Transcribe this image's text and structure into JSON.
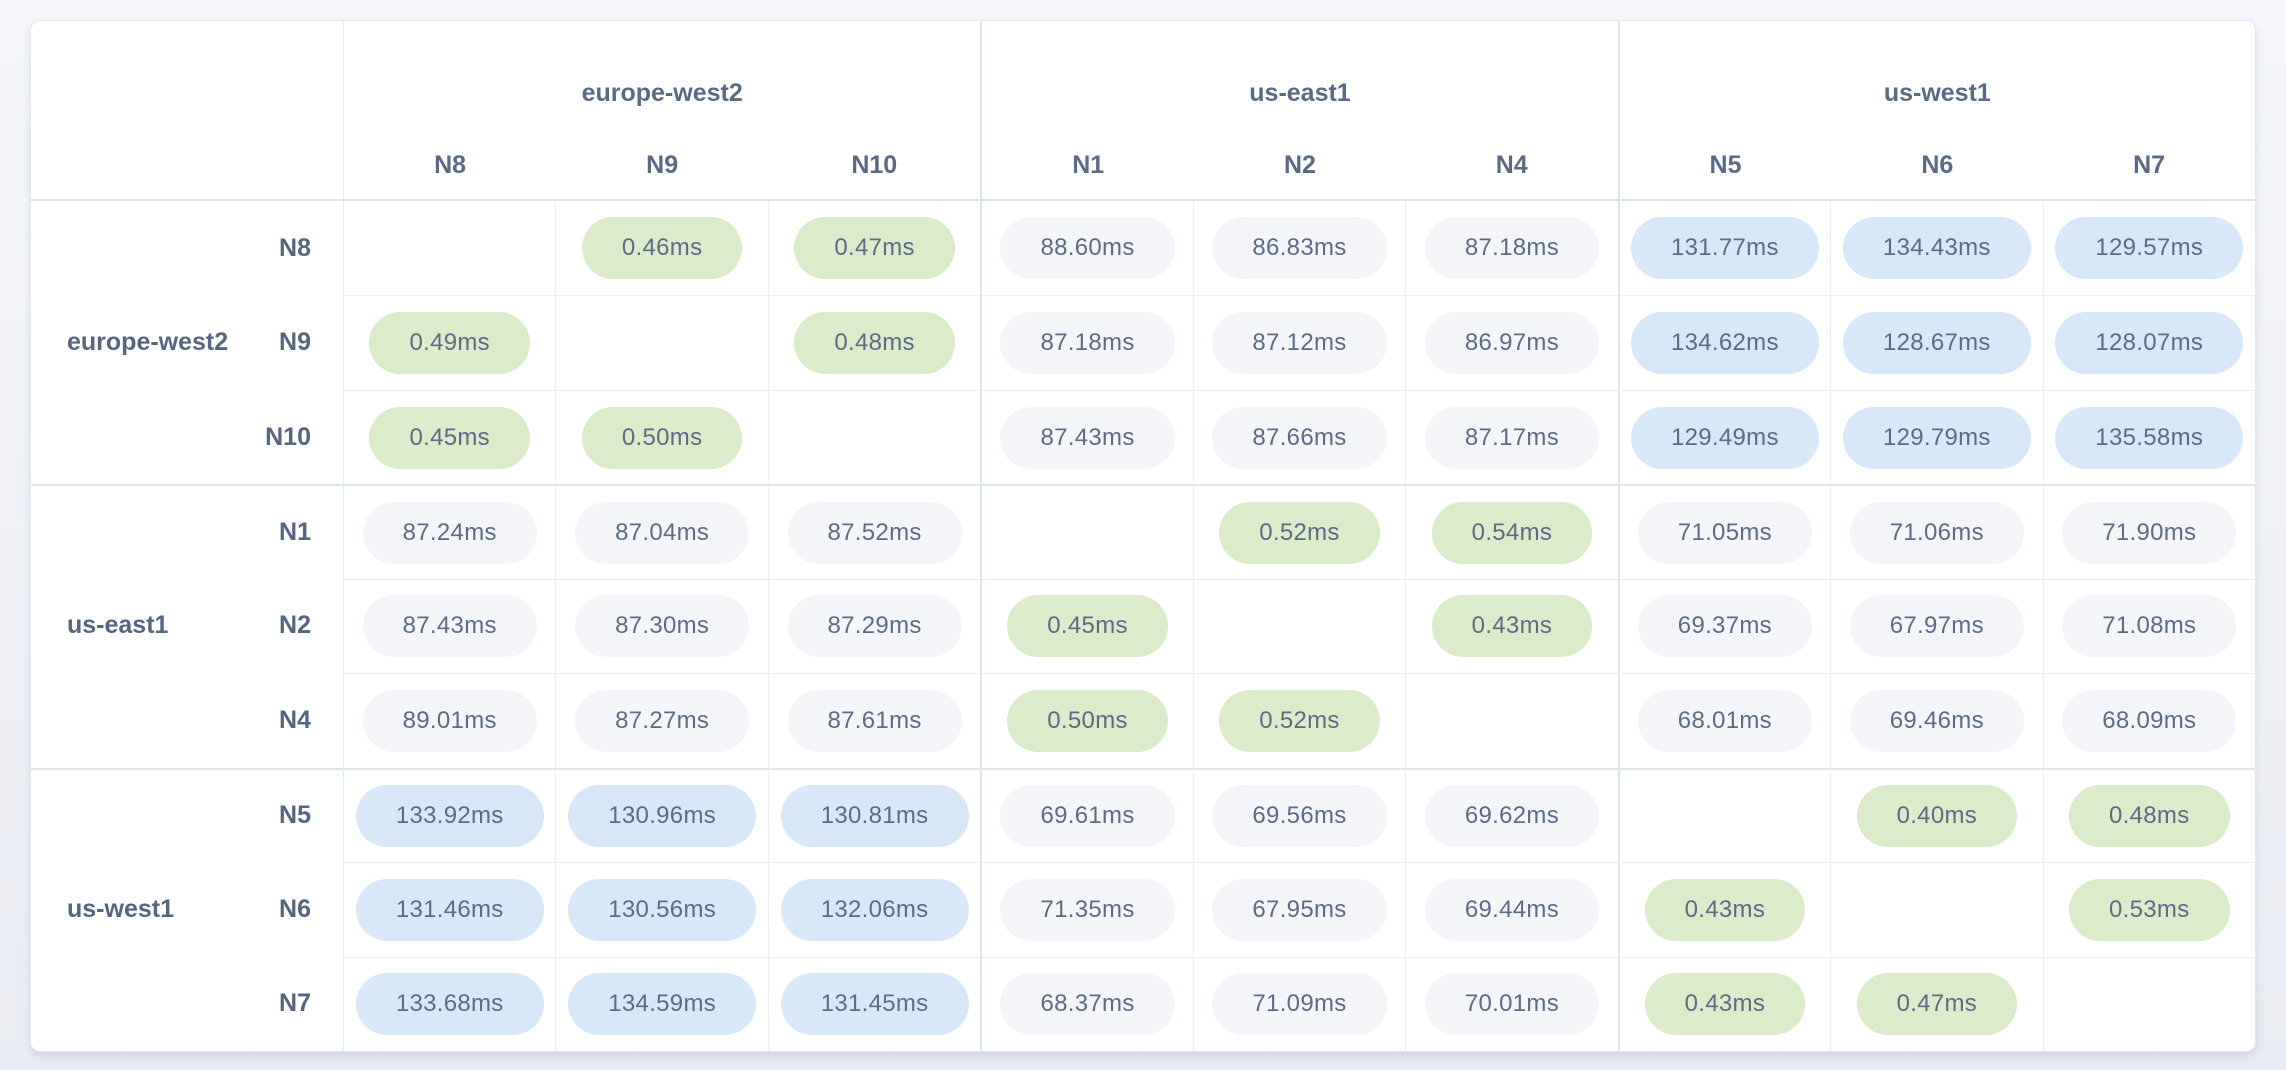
{
  "chart_data": {
    "type": "heatmap",
    "title": "",
    "unit": "ms",
    "columns": [
      "N8",
      "N9",
      "N10",
      "N1",
      "N2",
      "N4",
      "N5",
      "N6",
      "N7"
    ],
    "rows": [
      "N8",
      "N9",
      "N10",
      "N1",
      "N2",
      "N4",
      "N5",
      "N6",
      "N7"
    ],
    "column_groups": [
      {
        "name": "europe-west2",
        "nodes": [
          "N8",
          "N9",
          "N10"
        ]
      },
      {
        "name": "us-east1",
        "nodes": [
          "N1",
          "N2",
          "N4"
        ]
      },
      {
        "name": "us-west1",
        "nodes": [
          "N5",
          "N6",
          "N7"
        ]
      }
    ],
    "row_groups": [
      {
        "name": "europe-west2",
        "nodes": [
          "N8",
          "N9",
          "N10"
        ]
      },
      {
        "name": "us-east1",
        "nodes": [
          "N1",
          "N2",
          "N4"
        ]
      },
      {
        "name": "us-west1",
        "nodes": [
          "N5",
          "N6",
          "N7"
        ]
      }
    ],
    "values_ms": [
      [
        null,
        0.46,
        0.47,
        88.6,
        86.83,
        87.18,
        131.77,
        134.43,
        129.57
      ],
      [
        0.49,
        null,
        0.48,
        87.18,
        87.12,
        86.97,
        134.62,
        128.67,
        128.07
      ],
      [
        0.45,
        0.5,
        null,
        87.43,
        87.66,
        87.17,
        129.49,
        129.79,
        135.58
      ],
      [
        87.24,
        87.04,
        87.52,
        null,
        0.52,
        0.54,
        71.05,
        71.06,
        71.9
      ],
      [
        87.43,
        87.3,
        87.29,
        0.45,
        null,
        0.43,
        69.37,
        67.97,
        71.08
      ],
      [
        89.01,
        87.27,
        87.61,
        0.5,
        0.52,
        null,
        68.01,
        69.46,
        68.09
      ],
      [
        133.92,
        130.96,
        130.81,
        69.61,
        69.56,
        69.62,
        null,
        0.4,
        0.48
      ],
      [
        131.46,
        130.56,
        132.06,
        71.35,
        67.95,
        69.44,
        0.43,
        null,
        0.53
      ],
      [
        133.68,
        134.59,
        131.45,
        68.37,
        71.09,
        70.01,
        0.43,
        0.47,
        null
      ]
    ]
  },
  "matrix": {
    "groups": [
      {
        "name": "europe-west2",
        "nodes": [
          "N8",
          "N9",
          "N10"
        ]
      },
      {
        "name": "us-east1",
        "nodes": [
          "N1",
          "N2",
          "N4"
        ]
      },
      {
        "name": "us-west1",
        "nodes": [
          "N5",
          "N6",
          "N7"
        ]
      }
    ],
    "columns": [
      "N8",
      "N9",
      "N10",
      "N1",
      "N2",
      "N4",
      "N5",
      "N6",
      "N7"
    ],
    "rows": [
      {
        "node": "N8",
        "region": "europe-west2",
        "show_region": false,
        "group_start": false,
        "cells": [
          {
            "value": "",
            "level": "self"
          },
          {
            "value": "0.46ms",
            "level": "low"
          },
          {
            "value": "0.47ms",
            "level": "low"
          },
          {
            "value": "88.60ms",
            "level": "mid"
          },
          {
            "value": "86.83ms",
            "level": "mid"
          },
          {
            "value": "87.18ms",
            "level": "mid"
          },
          {
            "value": "131.77ms",
            "level": "high"
          },
          {
            "value": "134.43ms",
            "level": "high"
          },
          {
            "value": "129.57ms",
            "level": "high"
          }
        ]
      },
      {
        "node": "N9",
        "region": "europe-west2",
        "show_region": true,
        "group_start": false,
        "cells": [
          {
            "value": "0.49ms",
            "level": "low"
          },
          {
            "value": "",
            "level": "self"
          },
          {
            "value": "0.48ms",
            "level": "low"
          },
          {
            "value": "87.18ms",
            "level": "mid"
          },
          {
            "value": "87.12ms",
            "level": "mid"
          },
          {
            "value": "86.97ms",
            "level": "mid"
          },
          {
            "value": "134.62ms",
            "level": "high"
          },
          {
            "value": "128.67ms",
            "level": "high"
          },
          {
            "value": "128.07ms",
            "level": "high"
          }
        ]
      },
      {
        "node": "N10",
        "region": "europe-west2",
        "show_region": false,
        "group_start": false,
        "cells": [
          {
            "value": "0.45ms",
            "level": "low"
          },
          {
            "value": "0.50ms",
            "level": "low"
          },
          {
            "value": "",
            "level": "self"
          },
          {
            "value": "87.43ms",
            "level": "mid"
          },
          {
            "value": "87.66ms",
            "level": "mid"
          },
          {
            "value": "87.17ms",
            "level": "mid"
          },
          {
            "value": "129.49ms",
            "level": "high"
          },
          {
            "value": "129.79ms",
            "level": "high"
          },
          {
            "value": "135.58ms",
            "level": "high"
          }
        ]
      },
      {
        "node": "N1",
        "region": "us-east1",
        "show_region": false,
        "group_start": true,
        "cells": [
          {
            "value": "87.24ms",
            "level": "mid"
          },
          {
            "value": "87.04ms",
            "level": "mid"
          },
          {
            "value": "87.52ms",
            "level": "mid"
          },
          {
            "value": "",
            "level": "self"
          },
          {
            "value": "0.52ms",
            "level": "low"
          },
          {
            "value": "0.54ms",
            "level": "low"
          },
          {
            "value": "71.05ms",
            "level": "mid"
          },
          {
            "value": "71.06ms",
            "level": "mid"
          },
          {
            "value": "71.90ms",
            "level": "mid"
          }
        ]
      },
      {
        "node": "N2",
        "region": "us-east1",
        "show_region": true,
        "group_start": false,
        "cells": [
          {
            "value": "87.43ms",
            "level": "mid"
          },
          {
            "value": "87.30ms",
            "level": "mid"
          },
          {
            "value": "87.29ms",
            "level": "mid"
          },
          {
            "value": "0.45ms",
            "level": "low"
          },
          {
            "value": "",
            "level": "self"
          },
          {
            "value": "0.43ms",
            "level": "low"
          },
          {
            "value": "69.37ms",
            "level": "mid"
          },
          {
            "value": "67.97ms",
            "level": "mid"
          },
          {
            "value": "71.08ms",
            "level": "mid"
          }
        ]
      },
      {
        "node": "N4",
        "region": "us-east1",
        "show_region": false,
        "group_start": false,
        "cells": [
          {
            "value": "89.01ms",
            "level": "mid"
          },
          {
            "value": "87.27ms",
            "level": "mid"
          },
          {
            "value": "87.61ms",
            "level": "mid"
          },
          {
            "value": "0.50ms",
            "level": "low"
          },
          {
            "value": "0.52ms",
            "level": "low"
          },
          {
            "value": "",
            "level": "self"
          },
          {
            "value": "68.01ms",
            "level": "mid"
          },
          {
            "value": "69.46ms",
            "level": "mid"
          },
          {
            "value": "68.09ms",
            "level": "mid"
          }
        ]
      },
      {
        "node": "N5",
        "region": "us-west1",
        "show_region": false,
        "group_start": true,
        "cells": [
          {
            "value": "133.92ms",
            "level": "high"
          },
          {
            "value": "130.96ms",
            "level": "high"
          },
          {
            "value": "130.81ms",
            "level": "high"
          },
          {
            "value": "69.61ms",
            "level": "mid"
          },
          {
            "value": "69.56ms",
            "level": "mid"
          },
          {
            "value": "69.62ms",
            "level": "mid"
          },
          {
            "value": "",
            "level": "self"
          },
          {
            "value": "0.40ms",
            "level": "low"
          },
          {
            "value": "0.48ms",
            "level": "low"
          }
        ]
      },
      {
        "node": "N6",
        "region": "us-west1",
        "show_region": true,
        "group_start": false,
        "cells": [
          {
            "value": "131.46ms",
            "level": "high"
          },
          {
            "value": "130.56ms",
            "level": "high"
          },
          {
            "value": "132.06ms",
            "level": "high"
          },
          {
            "value": "71.35ms",
            "level": "mid"
          },
          {
            "value": "67.95ms",
            "level": "mid"
          },
          {
            "value": "69.44ms",
            "level": "mid"
          },
          {
            "value": "0.43ms",
            "level": "low"
          },
          {
            "value": "",
            "level": "self"
          },
          {
            "value": "0.53ms",
            "level": "low"
          }
        ]
      },
      {
        "node": "N7",
        "region": "us-west1",
        "show_region": false,
        "group_start": false,
        "cells": [
          {
            "value": "133.68ms",
            "level": "high"
          },
          {
            "value": "134.59ms",
            "level": "high"
          },
          {
            "value": "131.45ms",
            "level": "high"
          },
          {
            "value": "68.37ms",
            "level": "mid"
          },
          {
            "value": "71.09ms",
            "level": "mid"
          },
          {
            "value": "70.01ms",
            "level": "mid"
          },
          {
            "value": "0.43ms",
            "level": "low"
          },
          {
            "value": "0.47ms",
            "level": "low"
          },
          {
            "value": "",
            "level": "self"
          }
        ]
      }
    ]
  },
  "colors": {
    "pill_low_bg": "#dcebc9",
    "pill_mid_bg": "#f3f5f9",
    "pill_high_bg": "#d8e8f9",
    "value_text": "#5d6b85",
    "label_text": "#56657f",
    "border_light": "#eaeef4",
    "border_group": "#dee5ee",
    "card_bg": "#ffffff",
    "page_bg_top": "#f4f6fa",
    "page_bg_bottom": "#e9ebf2"
  }
}
